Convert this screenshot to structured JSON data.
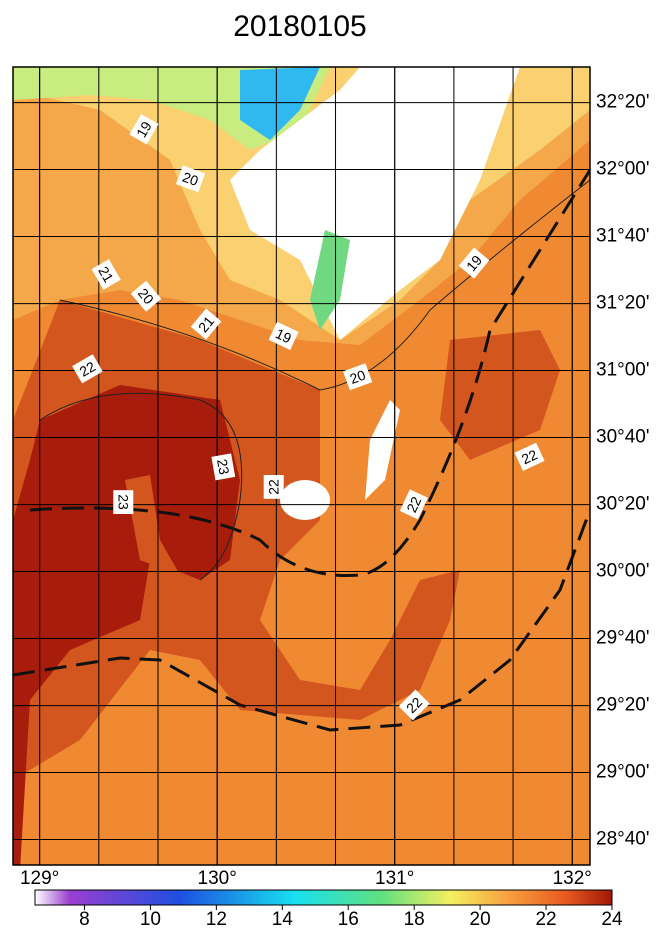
{
  "title": "20180105",
  "map": {
    "xlim": [
      128.85,
      132.1
    ],
    "ylim": [
      28.54,
      32.51
    ],
    "xticks": [
      {
        "value": 129,
        "label": "129°"
      },
      {
        "value": 130,
        "label": "130°"
      },
      {
        "value": 131,
        "label": "131°"
      },
      {
        "value": 132,
        "label": "132°"
      }
    ],
    "yticks": [
      {
        "value": 32.333,
        "label": "32°20'"
      },
      {
        "value": 32.0,
        "label": "32°00'"
      },
      {
        "value": 31.667,
        "label": "31°40'"
      },
      {
        "value": 31.333,
        "label": "31°20'"
      },
      {
        "value": 31.0,
        "label": "31°00'"
      },
      {
        "value": 30.667,
        "label": "30°40'"
      },
      {
        "value": 30.333,
        "label": "30°20'"
      },
      {
        "value": 30.0,
        "label": "30°00'"
      },
      {
        "value": 29.667,
        "label": "29°40'"
      },
      {
        "value": 29.333,
        "label": "29°20'"
      },
      {
        "value": 29.0,
        "label": "29°00'"
      },
      {
        "value": 28.667,
        "label": "28°40'"
      }
    ],
    "contour_labels": [
      "19",
      "20",
      "21",
      "20",
      "21",
      "19",
      "22",
      "20",
      "23",
      "22",
      "23",
      "22",
      "22",
      "22",
      "19"
    ]
  },
  "colorbar": {
    "range": [
      6.5,
      24
    ],
    "ticks": [
      8,
      10,
      12,
      14,
      16,
      18,
      20,
      22,
      24
    ]
  }
}
